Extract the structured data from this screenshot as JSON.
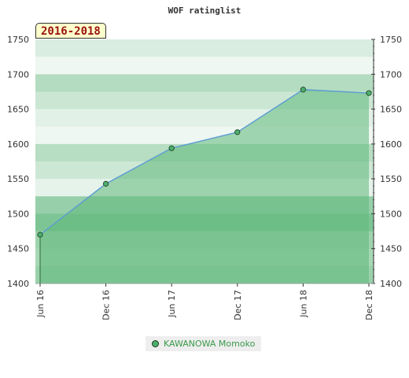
{
  "chart_data": {
    "type": "area",
    "title": "WOF ratinglist",
    "period": "2016-2018",
    "x": [
      "Jun 16",
      "Dec 16",
      "Jun 17",
      "Dec 17",
      "Jun 18",
      "Dec 18"
    ],
    "series": [
      {
        "name": "KAWANOWA Momoko",
        "values": [
          1470,
          1543,
          1594,
          1617,
          1678,
          1673
        ]
      }
    ],
    "ylim": [
      1400,
      1750
    ],
    "yticks": [
      1400,
      1450,
      1500,
      1550,
      1600,
      1650,
      1700,
      1750
    ],
    "grid": true,
    "legend_position": "bottom-center",
    "colors": {
      "line": "#5b9bd5",
      "marker": "#4caf6e",
      "area": "#5fb87a"
    }
  }
}
